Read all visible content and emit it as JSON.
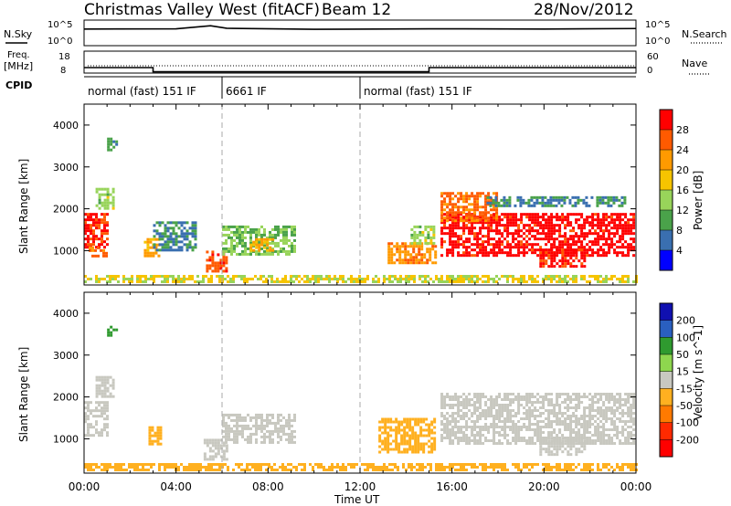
{
  "header": {
    "title": "Christmas Valley West (fitACF)",
    "beam": "Beam 12",
    "date": "28/Nov/2012"
  },
  "noise_panel": {
    "left_label": "N.Sky",
    "right_label": "N.Search",
    "tick_top": "10^5",
    "tick_bottom": "10^0",
    "tick_top_r": "10^5",
    "tick_bottom_r": "10^0"
  },
  "freq_panel": {
    "left_label_1": "Freq.",
    "left_label_2": "[MHz]",
    "right_label": "Nave",
    "tick_18": "18",
    "tick_8": "8",
    "tick_60": "60",
    "tick_0": "0"
  },
  "cpid_panel": {
    "label": "CPID",
    "segments": [
      {
        "start_hour": 0,
        "end_hour": 6,
        "label": "normal (fast) 151 IF"
      },
      {
        "start_hour": 6,
        "end_hour": 12,
        "label": "6661 IF"
      },
      {
        "start_hour": 12,
        "end_hour": 24,
        "label": "normal (fast) 151 IF"
      }
    ]
  },
  "axes": {
    "xlabel": "Time UT",
    "ylabel": "Slant Range [km]",
    "xticks": [
      "00:00",
      "04:00",
      "08:00",
      "12:00",
      "16:00",
      "20:00",
      "00:00"
    ],
    "yticks": [
      "1000",
      "2000",
      "3000",
      "4000"
    ]
  },
  "power_scale": {
    "label": "Power [dB]",
    "ticks": [
      "28",
      "24",
      "20",
      "16",
      "12",
      "8",
      "4"
    ],
    "colors": [
      "#ff0000",
      "#ff5a00",
      "#ff9a00",
      "#f6c400",
      "#98d45a",
      "#4aa24a",
      "#3a6fb0",
      "#0000ff"
    ]
  },
  "velocity_scale": {
    "label": "Velocity [m s^-1]",
    "ticks": [
      "200",
      "100",
      "50",
      "15",
      "-15",
      "-50",
      "-100",
      "-200"
    ],
    "colors": [
      "#1010b0",
      "#2a5fc0",
      "#2f9a2f",
      "#8ed64e",
      "#c8c8c0",
      "#ffb020",
      "#ff7a00",
      "#ff2a00",
      "#ff0000"
    ]
  },
  "chart_data": {
    "type": "heatmap",
    "xlabel": "Time UT",
    "ylabel": "Slant Range [km]",
    "xlim": [
      0,
      24
    ],
    "ylim": [
      180,
      4500
    ],
    "panels": [
      {
        "name": "Power",
        "unit": "dB",
        "color_range": [
          0,
          30
        ],
        "regions": [
          {
            "t": [
              0.0,
              1.0
            ],
            "r": [
              1100,
              1900
            ],
            "v": 26
          },
          {
            "t": [
              0.2,
              1.0
            ],
            "r": [
              900,
              1100
            ],
            "v": 22
          },
          {
            "t": [
              0.5,
              1.3
            ],
            "r": [
              2000,
              2500
            ],
            "v": 12
          },
          {
            "t": [
              1.0,
              1.4
            ],
            "r": [
              3400,
              3700
            ],
            "v": 8
          },
          {
            "t": [
              2.6,
              3.2
            ],
            "r": [
              900,
              1300
            ],
            "v": 18
          },
          {
            "t": [
              3.0,
              4.8
            ],
            "r": [
              1000,
              1700
            ],
            "v": 6
          },
          {
            "t": [
              5.3,
              6.2
            ],
            "r": [
              500,
              1000
            ],
            "v": 24
          },
          {
            "t": [
              6.0,
              9.2
            ],
            "r": [
              900,
              1600
            ],
            "v": 10
          },
          {
            "t": [
              7.2,
              8.2
            ],
            "r": [
              1000,
              1300
            ],
            "v": 18
          },
          {
            "t": [
              13.2,
              15.3
            ],
            "r": [
              700,
              1200
            ],
            "v": 20
          },
          {
            "t": [
              14.2,
              15.2
            ],
            "r": [
              1200,
              1600
            ],
            "v": 12
          },
          {
            "t": [
              15.5,
              23.9
            ],
            "r": [
              900,
              1900
            ],
            "v": 27
          },
          {
            "t": [
              15.5,
              18.0
            ],
            "r": [
              1700,
              2400
            ],
            "v": 22
          },
          {
            "t": [
              19.8,
              21.8
            ],
            "r": [
              650,
              1050
            ],
            "v": 26
          },
          {
            "t": [
              17.5,
              23.5
            ],
            "r": [
              2100,
              2300
            ],
            "v": 6
          },
          {
            "t": [
              0.0,
              24.0
            ],
            "r": [
              250,
              420
            ],
            "v": 14
          }
        ]
      },
      {
        "name": "Velocity",
        "unit": "m s^-1",
        "color_range": [
          -250,
          250
        ],
        "regions": [
          {
            "t": [
              0.0,
              1.0
            ],
            "r": [
              1100,
              1900
            ],
            "v": 0
          },
          {
            "t": [
              0.5,
              1.3
            ],
            "r": [
              2000,
              2500
            ],
            "v": 0
          },
          {
            "t": [
              1.0,
              1.4
            ],
            "r": [
              3500,
              3700
            ],
            "v": 60
          },
          {
            "t": [
              2.8,
              3.3
            ],
            "r": [
              900,
              1300
            ],
            "v": -40
          },
          {
            "t": [
              5.2,
              6.2
            ],
            "r": [
              500,
              1000
            ],
            "v": 0
          },
          {
            "t": [
              6.0,
              9.2
            ],
            "r": [
              900,
              1600
            ],
            "v": -10
          },
          {
            "t": [
              12.8,
              15.3
            ],
            "r": [
              700,
              1500
            ],
            "v": -45
          },
          {
            "t": [
              15.5,
              23.9
            ],
            "r": [
              900,
              2100
            ],
            "v": 0
          },
          {
            "t": [
              19.8,
              21.8
            ],
            "r": [
              650,
              1050
            ],
            "v": 0
          },
          {
            "t": [
              0.0,
              24.0
            ],
            "r": [
              250,
              420
            ],
            "v": -40
          }
        ]
      }
    ],
    "noise_sky": [
      {
        "t": 0,
        "v": 0.65
      },
      {
        "t": 4,
        "v": 0.66
      },
      {
        "t": 5.5,
        "v": 0.78
      },
      {
        "t": 6.2,
        "v": 0.68
      },
      {
        "t": 10,
        "v": 0.64
      },
      {
        "t": 15,
        "v": 0.66
      },
      {
        "t": 20,
        "v": 0.65
      },
      {
        "t": 24,
        "v": 0.67
      }
    ],
    "frequency": [
      {
        "t": 0,
        "v": 10.5
      },
      {
        "t": 3.0,
        "v": 10.5
      },
      {
        "t": 3.0,
        "v": 8.6
      },
      {
        "t": 15.0,
        "v": 8.6
      },
      {
        "t": 15.0,
        "v": 10.5
      },
      {
        "t": 24,
        "v": 10.5
      }
    ]
  }
}
